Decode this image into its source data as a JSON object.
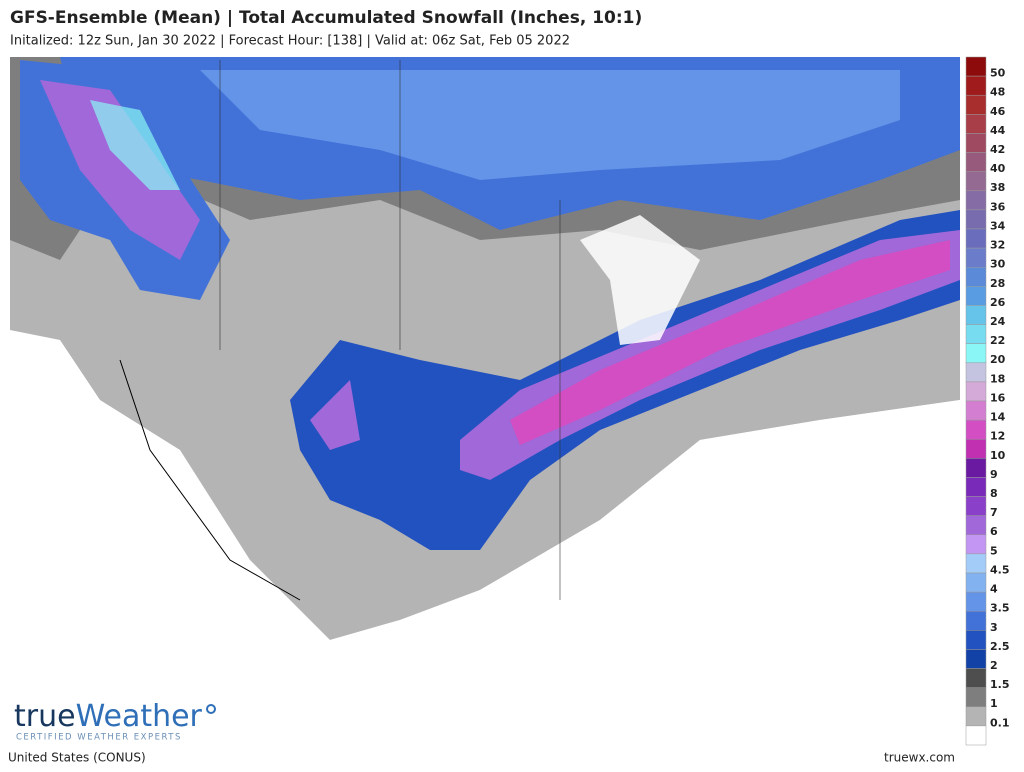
{
  "header": {
    "title": "GFS-Ensemble (Mean) | Total Accumulated Snowfall (Inches, 10:1)",
    "subtitle": "Initalized: 12z Sun, Jan 30 2022 | Forecast Hour: [138] | Valid at: 06z Sat, Feb 05 2022"
  },
  "legend": {
    "colors": [
      "#8e0b0b",
      "#a01c1c",
      "#a82e2e",
      "#a83e48",
      "#a04a62",
      "#985a7c",
      "#946a92",
      "#866ca4",
      "#786cae",
      "#6a6cbc",
      "#6a7cca",
      "#5a8ad8",
      "#5a9ce2",
      "#66c4ea",
      "#78dcf0",
      "#8af6f6",
      "#c4c4e0",
      "#d4aad8",
      "#d47ed2",
      "#d24ec2",
      "#c230b2",
      "#6a1aa0",
      "#7a2ab8",
      "#8a40c8",
      "#a068d8",
      "#c296f2",
      "#a4ccf8",
      "#82b2f0",
      "#6494e8",
      "#4272d8",
      "#2252c0",
      "#1242a6",
      "#4e4e4e",
      "#7e7e7e",
      "#b4b4b4",
      "#ffffff"
    ],
    "labels": [
      "50",
      "48",
      "46",
      "44",
      "42",
      "40",
      "38",
      "36",
      "34",
      "32",
      "30",
      "28",
      "26",
      "24",
      "22",
      "20",
      "18",
      "16",
      "14",
      "12",
      "10",
      "9",
      "8",
      "7",
      "6",
      "5",
      "4.5",
      "4",
      "3.5",
      "3",
      "2.5",
      "2",
      "1.5",
      "1",
      "0.1"
    ]
  },
  "logo": {
    "part1": "true",
    "part2": "Weather",
    "tagline": "CERTIFIED WEATHER EXPERTS"
  },
  "footer": {
    "region": "United States (CONUS)",
    "site": "truewx.com"
  }
}
